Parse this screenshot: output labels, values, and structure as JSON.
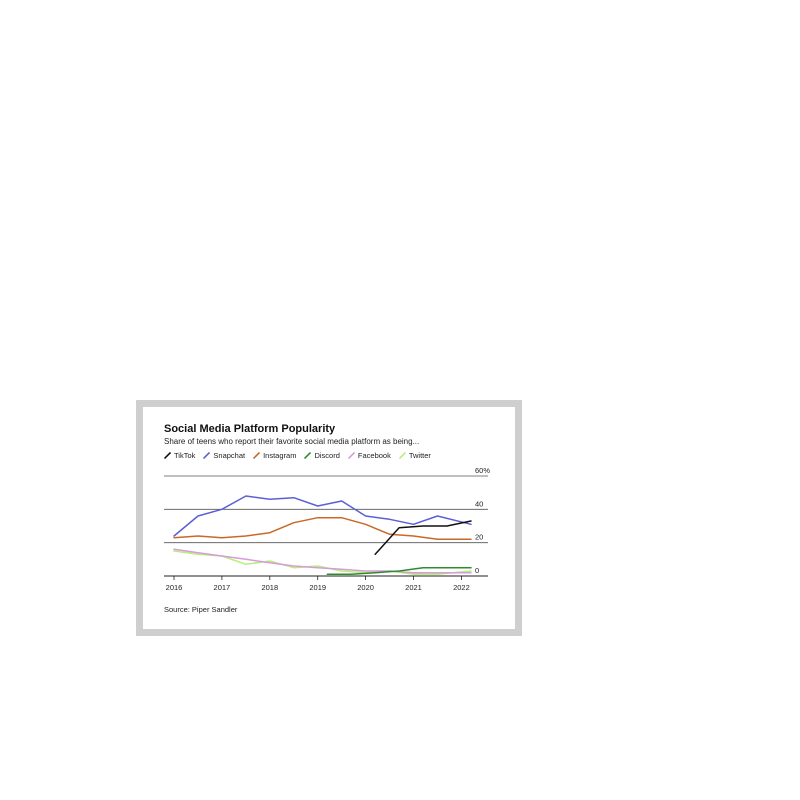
{
  "chart_data": {
    "type": "line",
    "title": "Social Media Platform Popularity",
    "subtitle": "Share of teens who report their favorite social media platform as being...",
    "source": "Source: Piper Sandler",
    "x_tick_labels": [
      "2016",
      "2017",
      "2018",
      "2019",
      "2020",
      "2021",
      "2022"
    ],
    "xlim": [
      2016,
      2022.2
    ],
    "y_tick_labels": [
      "60%",
      "40",
      "20",
      "0"
    ],
    "y_ticks": [
      60,
      40,
      20,
      0
    ],
    "ylim": [
      0,
      60
    ],
    "grid": true,
    "legend_position": "top-left",
    "series": [
      {
        "name": "TikTok",
        "color": "#111111",
        "x": [
          2020.2,
          2020.7,
          2021.2,
          2021.7,
          2022.2
        ],
        "y": [
          13,
          29,
          30,
          30,
          33
        ]
      },
      {
        "name": "Snapchat",
        "color": "#5b5fd6",
        "x": [
          2016,
          2016.5,
          2017,
          2017.5,
          2018,
          2018.5,
          2019,
          2019.5,
          2020,
          2020.5,
          2021,
          2021.5,
          2022.2
        ],
        "y": [
          24,
          36,
          40,
          48,
          46,
          47,
          42,
          45,
          36,
          34,
          31,
          36,
          31
        ]
      },
      {
        "name": "Instagram",
        "color": "#c8692a",
        "x": [
          2016,
          2016.5,
          2017,
          2017.5,
          2018,
          2018.5,
          2019,
          2019.5,
          2020,
          2020.5,
          2021,
          2021.5,
          2022.2
        ],
        "y": [
          23,
          24,
          23,
          24,
          26,
          32,
          35,
          35,
          31,
          25,
          24,
          22,
          22
        ]
      },
      {
        "name": "Discord",
        "color": "#2e8b2e",
        "x": [
          2019.2,
          2019.7,
          2020.2,
          2020.7,
          2021.2,
          2021.7,
          2022.2
        ],
        "y": [
          1,
          1,
          2,
          3,
          5,
          5,
          5
        ]
      },
      {
        "name": "Facebook",
        "color": "#d99ad9",
        "x": [
          2016,
          2016.5,
          2017,
          2017.5,
          2018,
          2018.5,
          2019,
          2019.5,
          2020,
          2020.5,
          2021,
          2021.5,
          2022.2
        ],
        "y": [
          16,
          14,
          12,
          10,
          8,
          6,
          5,
          4,
          3,
          3,
          2,
          2,
          2
        ]
      },
      {
        "name": "Twitter",
        "color": "#b6ef7a",
        "x": [
          2016,
          2016.5,
          2017,
          2017.5,
          2018,
          2018.5,
          2019,
          2019.5,
          2020,
          2020.5,
          2021,
          2021.5,
          2022.2
        ],
        "y": [
          15,
          13,
          12,
          7,
          9,
          5,
          6,
          3,
          2,
          3,
          1,
          1,
          3
        ]
      }
    ]
  }
}
